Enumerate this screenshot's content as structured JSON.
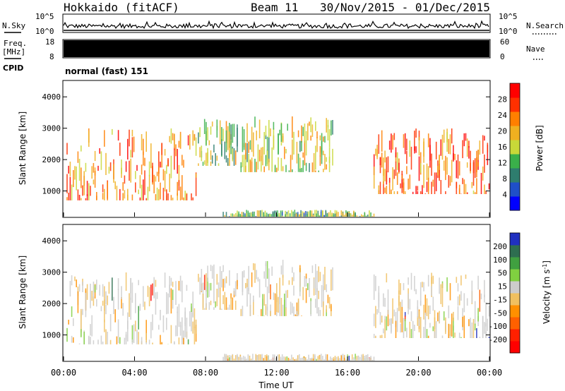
{
  "header": {
    "title": "Hokkaido (fitACF)",
    "beam": "Beam 11",
    "date_range": "30/Nov/2015 - 01/Dec/2015"
  },
  "noise_panel": {
    "left_label": "N.Sky",
    "right_label": "N.Search",
    "left_ticks": [
      "10^5",
      "10^0"
    ],
    "right_ticks": [
      "10^5",
      "10^0"
    ],
    "right_line_color": "#000000"
  },
  "freq_panel": {
    "left_label_line1": "Freq.",
    "left_label_line2": "[MHz]",
    "right_label": "Nave",
    "left_ticks": [
      "18",
      "8"
    ],
    "right_ticks": [
      "60",
      "0"
    ]
  },
  "cpid_panel": {
    "label": "CPID",
    "mode_text": "normal (fast) 151"
  },
  "x_axis": {
    "label": "Time UT",
    "ticks": [
      "00:00",
      "04:00",
      "08:00",
      "12:00",
      "16:00",
      "20:00",
      "00:00"
    ]
  },
  "chart_data": [
    {
      "type": "heatmap",
      "quantity": "Power",
      "ylabel": "Slant Range [km]",
      "xlabel": "",
      "x_range_hours": [
        0,
        24
      ],
      "y_range_km": [
        180,
        4500
      ],
      "y_ticks": [
        1000,
        2000,
        3000,
        4000
      ],
      "colorbar": {
        "label": "Power [dB]",
        "tick_labels": [
          "4",
          "8",
          "12",
          "16",
          "20",
          "24",
          "28"
        ],
        "colors": [
          "#0000ff",
          "#1f4fc8",
          "#2e7d6e",
          "#3ab04a",
          "#c8d838",
          "#f0b020",
          "#ff7f00",
          "#ff3000",
          "#ff0000"
        ]
      },
      "echo_regions": [
        {
          "t0": 0.2,
          "t1": 7.5,
          "r0": 700,
          "r1": 3000,
          "level": 0.75
        },
        {
          "t0": 7.6,
          "t1": 9.8,
          "r0": 1800,
          "r1": 3300,
          "level": 0.45
        },
        {
          "t0": 10.0,
          "t1": 15.2,
          "r0": 1600,
          "r1": 3400,
          "level": 0.55
        },
        {
          "t0": 9.0,
          "t1": 17.5,
          "r0": 180,
          "r1": 400,
          "level": 0.4
        },
        {
          "t0": 17.5,
          "t1": 24.0,
          "r0": 900,
          "r1": 3000,
          "level": 0.8
        }
      ]
    },
    {
      "type": "heatmap",
      "quantity": "Velocity",
      "ylabel": "Slant Range [km]",
      "xlabel": "Time UT",
      "x_range_hours": [
        0,
        24
      ],
      "y_range_km": [
        180,
        4500
      ],
      "y_ticks": [
        1000,
        2000,
        3000,
        4000
      ],
      "colorbar": {
        "label": "Velocity [m s-1]",
        "tick_labels": [
          "200",
          "100",
          "50",
          "15",
          "-15",
          "-50",
          "-100",
          "-200"
        ],
        "colors": [
          "#2030c0",
          "#2e6e50",
          "#40a040",
          "#80d040",
          "#cccccc",
          "#f0c060",
          "#ff9000",
          "#ff6000",
          "#ff2000",
          "#ff0000"
        ]
      },
      "echo_regions": [
        {
          "t0": 0.2,
          "t1": 7.5,
          "r0": 700,
          "r1": 3000,
          "level": 0.5
        },
        {
          "t0": 7.6,
          "t1": 9.8,
          "r0": 1800,
          "r1": 3300,
          "level": 0.5
        },
        {
          "t0": 10.0,
          "t1": 15.2,
          "r0": 1600,
          "r1": 3400,
          "level": 0.5
        },
        {
          "t0": 9.0,
          "t1": 17.5,
          "r0": 180,
          "r1": 400,
          "level": 0.3
        },
        {
          "t0": 17.5,
          "t1": 24.0,
          "r0": 900,
          "r1": 3000,
          "level": 0.5
        }
      ]
    }
  ]
}
